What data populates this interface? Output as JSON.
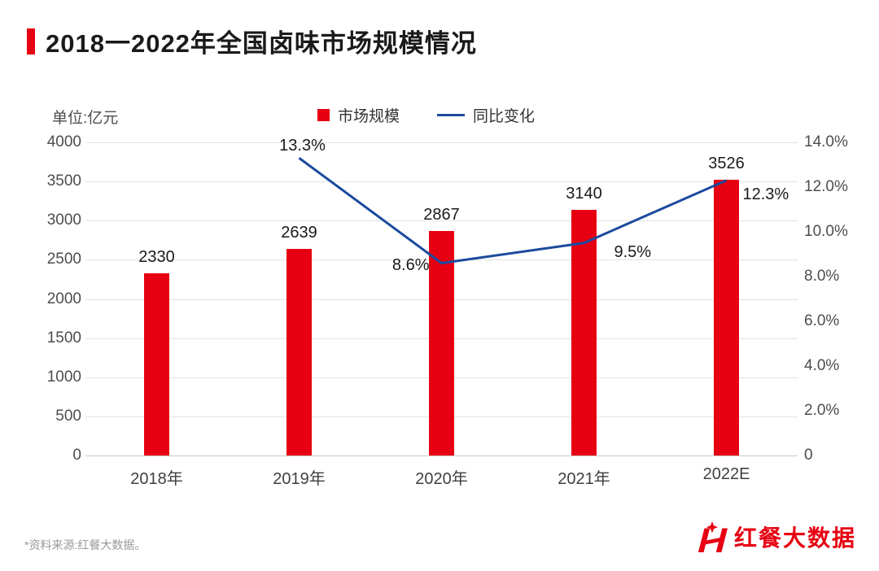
{
  "header": {
    "title": "2018一2022年全国卤味市场规模情况"
  },
  "unit_label": "单位:亿元",
  "footer": {
    "source": "*资料来源:红餐大数据。",
    "brand": "红餐大数据"
  },
  "colors": {
    "red": "#e60012",
    "blue": "#1b4a9e",
    "grid": "#e3e3e3"
  },
  "chart_data": {
    "type": "bar+line",
    "title": "2018一2022年全国卤味市场规模情况",
    "unit": "亿元",
    "categories": [
      "2018年",
      "2019年",
      "2020年",
      "2021年",
      "2022E"
    ],
    "series": [
      {
        "name": "市场规模",
        "type": "bar",
        "axis": "left",
        "color": "#e60012",
        "values": [
          2330,
          2639,
          2867,
          3140,
          3526
        ],
        "labels": [
          "2330",
          "2639",
          "2867",
          "3140",
          "3526"
        ]
      },
      {
        "name": "同比变化",
        "type": "line",
        "axis": "right",
        "color": "#1b4a9e",
        "values": [
          null,
          13.3,
          8.6,
          9.5,
          12.3
        ],
        "labels": [
          null,
          "13.3%",
          "8.6%",
          "9.5%",
          "12.3%"
        ]
      }
    ],
    "left_axis": {
      "min": 0,
      "max": 4000,
      "step": 500,
      "ticks": [
        "0",
        "500",
        "1000",
        "1500",
        "2000",
        "2500",
        "3000",
        "3500",
        "4000"
      ]
    },
    "right_axis": {
      "min": 0,
      "max": 14,
      "step": 2,
      "ticks": [
        "0",
        "2.0%",
        "4.0%",
        "6.0%",
        "8.0%",
        "10.0%",
        "12.0%",
        "14.0%"
      ]
    },
    "grid": true,
    "legend_position": "top"
  }
}
